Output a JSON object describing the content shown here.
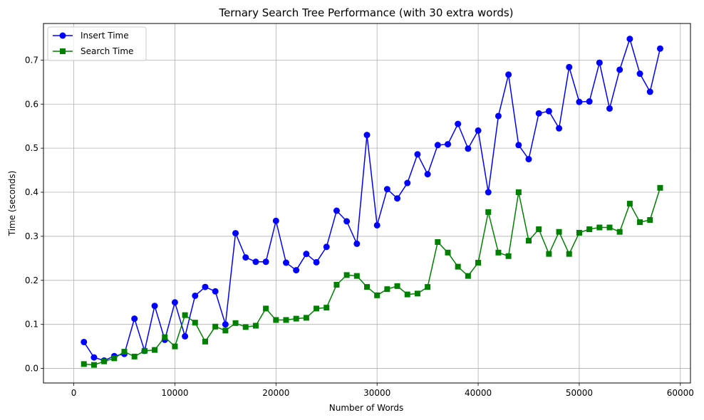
{
  "chart_data": {
    "type": "line",
    "title": "Ternary Search Tree Performance (with 30 extra words)",
    "xlabel": "Number of Words",
    "ylabel": "Time (seconds)",
    "xlim": [
      -3000,
      61000
    ],
    "ylim": [
      -0.033,
      0.783
    ],
    "x_ticks": [
      0,
      10000,
      20000,
      30000,
      40000,
      50000,
      60000
    ],
    "y_ticks": [
      0.0,
      0.1,
      0.2,
      0.3,
      0.4,
      0.5,
      0.6,
      0.7
    ],
    "grid": true,
    "legend_position": "top-left",
    "x": [
      1000,
      2000,
      3000,
      4000,
      5000,
      6000,
      7000,
      8000,
      9000,
      10000,
      11000,
      12000,
      13000,
      14000,
      15000,
      16000,
      17000,
      18000,
      19000,
      20000,
      21000,
      22000,
      23000,
      24000,
      25000,
      26000,
      27000,
      28000,
      29000,
      30000,
      31000,
      32000,
      33000,
      34000,
      35000,
      36000,
      37000,
      38000,
      39000,
      40000,
      41000,
      42000,
      43000,
      44000,
      45000,
      46000,
      47000,
      48000,
      49000,
      50000,
      51000,
      52000,
      53000,
      54000,
      55000,
      56000,
      57000,
      58000
    ],
    "series": [
      {
        "name": "Insert Time",
        "color": "#0000ff",
        "marker": "circle",
        "values": [
          0.06,
          0.025,
          0.018,
          0.028,
          0.033,
          0.113,
          0.04,
          0.142,
          0.065,
          0.15,
          0.073,
          0.165,
          0.185,
          0.175,
          0.1,
          0.307,
          0.252,
          0.242,
          0.242,
          0.335,
          0.24,
          0.223,
          0.26,
          0.241,
          0.276,
          0.358,
          0.334,
          0.283,
          0.53,
          0.325,
          0.407,
          0.386,
          0.421,
          0.486,
          0.441,
          0.507,
          0.509,
          0.555,
          0.499,
          0.54,
          0.4,
          0.573,
          0.667,
          0.507,
          0.475,
          0.579,
          0.584,
          0.545,
          0.684,
          0.605,
          0.606,
          0.694,
          0.59,
          0.678,
          0.748,
          0.669,
          0.628,
          0.726
        ]
      },
      {
        "name": "Search Time",
        "color": "#008000",
        "marker": "square",
        "values": [
          0.01,
          0.008,
          0.016,
          0.023,
          0.038,
          0.027,
          0.04,
          0.042,
          0.071,
          0.05,
          0.121,
          0.104,
          0.061,
          0.095,
          0.086,
          0.103,
          0.094,
          0.097,
          0.136,
          0.11,
          0.11,
          0.113,
          0.115,
          0.136,
          0.138,
          0.19,
          0.212,
          0.21,
          0.185,
          0.166,
          0.18,
          0.187,
          0.168,
          0.17,
          0.185,
          0.287,
          0.263,
          0.231,
          0.21,
          0.24,
          0.355,
          0.263,
          0.255,
          0.4,
          0.29,
          0.316,
          0.26,
          0.31,
          0.26,
          0.308,
          0.316,
          0.32,
          0.32,
          0.31,
          0.374,
          0.332,
          0.337,
          0.41
        ]
      }
    ]
  }
}
